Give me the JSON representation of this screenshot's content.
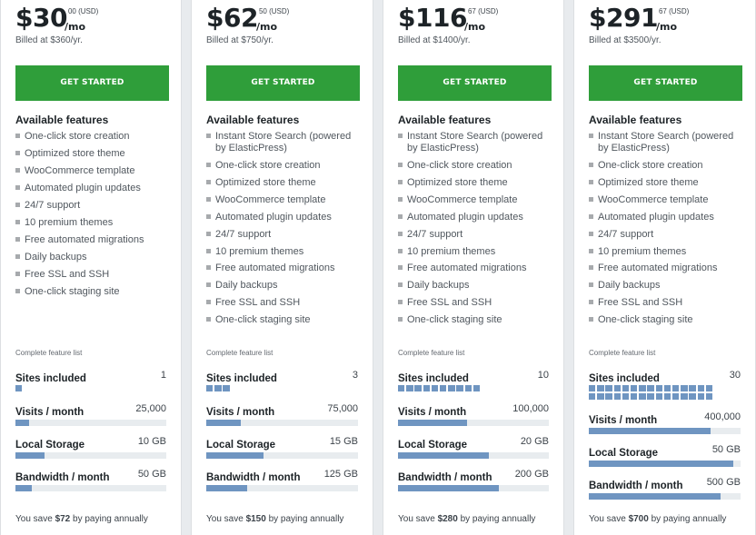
{
  "plans": [
    {
      "price": "$30",
      "cents": "00",
      "currency": "(USD)",
      "per": "/mo",
      "billed": "Billed at $360/yr.",
      "cta": "GET STARTED",
      "features_title": "Available features",
      "features": [
        "One-click store creation",
        "Optimized store theme",
        "WooCommerce template",
        "Automated plugin updates",
        "24/7 support",
        "10 premium themes",
        "Free automated migrations",
        "Daily backups",
        "Free SSL and SSH",
        "One-click staging site"
      ],
      "complete_link": "Complete feature list",
      "sites": {
        "label": "Sites included",
        "value": "1",
        "count": 1
      },
      "visits": {
        "label": "Visits / month",
        "value": "25,000",
        "fraction": 0.09
      },
      "storage": {
        "label": "Local Storage",
        "value": "10 GB",
        "fraction": 0.19
      },
      "bandwidth": {
        "label": "Bandwidth / month",
        "value": "50 GB",
        "fraction": 0.11
      },
      "save": {
        "prefix": "You save",
        "amount": "$72",
        "suffix": "by paying annually"
      }
    },
    {
      "price": "$62",
      "cents": "50",
      "currency": "(USD)",
      "per": "/mo",
      "billed": "Billed at $750/yr.",
      "cta": "GET STARTED",
      "features_title": "Available features",
      "features": [
        "Instant Store Search (powered by ElasticPress)",
        "One-click store creation",
        "Optimized store theme",
        "WooCommerce template",
        "Automated plugin updates",
        "24/7 support",
        "10 premium themes",
        "Free automated migrations",
        "Daily backups",
        "Free SSL and SSH",
        "One-click staging site"
      ],
      "complete_link": "Complete feature list",
      "sites": {
        "label": "Sites included",
        "value": "3",
        "count": 3
      },
      "visits": {
        "label": "Visits / month",
        "value": "75,000",
        "fraction": 0.23
      },
      "storage": {
        "label": "Local Storage",
        "value": "15 GB",
        "fraction": 0.38
      },
      "bandwidth": {
        "label": "Bandwidth / month",
        "value": "125 GB",
        "fraction": 0.27
      },
      "save": {
        "prefix": "You save",
        "amount": "$150",
        "suffix": "by paying annually"
      }
    },
    {
      "price": "$116",
      "cents": "67",
      "currency": "(USD)",
      "per": "/mo",
      "billed": "Billed at $1400/yr.",
      "cta": "GET STARTED",
      "features_title": "Available features",
      "features": [
        "Instant Store Search (powered by ElasticPress)",
        "One-click store creation",
        "Optimized store theme",
        "WooCommerce template",
        "Automated plugin updates",
        "24/7 support",
        "10 premium themes",
        "Free automated migrations",
        "Daily backups",
        "Free SSL and SSH",
        "One-click staging site"
      ],
      "complete_link": "Complete feature list",
      "sites": {
        "label": "Sites included",
        "value": "10",
        "count": 10
      },
      "visits": {
        "label": "Visits / month",
        "value": "100,000",
        "fraction": 0.46
      },
      "storage": {
        "label": "Local Storage",
        "value": "20 GB",
        "fraction": 0.6
      },
      "bandwidth": {
        "label": "Bandwidth / month",
        "value": "200 GB",
        "fraction": 0.67
      },
      "save": {
        "prefix": "You save",
        "amount": "$280",
        "suffix": "by paying annually"
      }
    },
    {
      "price": "$291",
      "cents": "67",
      "currency": "(USD)",
      "per": "/mo",
      "billed": "Billed at $3500/yr.",
      "cta": "GET STARTED",
      "features_title": "Available features",
      "features": [
        "Instant Store Search (powered by ElasticPress)",
        "One-click store creation",
        "Optimized store theme",
        "WooCommerce template",
        "Automated plugin updates",
        "24/7 support",
        "10 premium themes",
        "Free automated migrations",
        "Daily backups",
        "Free SSL and SSH",
        "One-click staging site"
      ],
      "complete_link": "Complete feature list",
      "sites": {
        "label": "Sites included",
        "value": "30",
        "count": 30
      },
      "visits": {
        "label": "Visits / month",
        "value": "400,000",
        "fraction": 0.8
      },
      "storage": {
        "label": "Local Storage",
        "value": "50 GB",
        "fraction": 0.95
      },
      "bandwidth": {
        "label": "Bandwidth / month",
        "value": "500 GB",
        "fraction": 0.87
      },
      "save": {
        "prefix": "You save",
        "amount": "$700",
        "suffix": "by paying annually"
      }
    }
  ],
  "colors": {
    "cta": "#2f9e3a",
    "bar_fill": "#6f95c1",
    "bar_track": "#e8ecef"
  }
}
